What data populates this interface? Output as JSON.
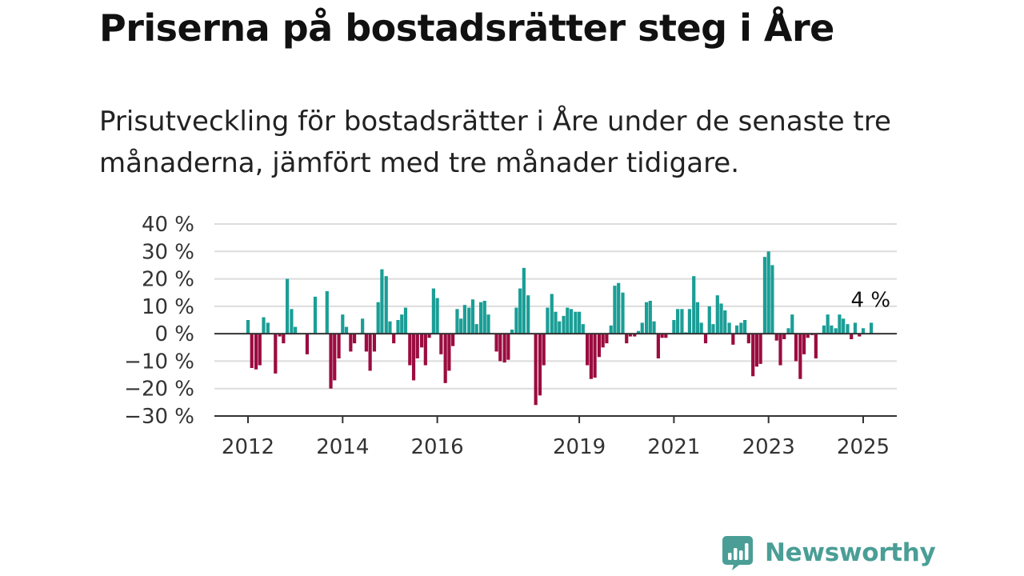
{
  "title": "Priserna på bostadsrätter steg i Åre",
  "subtitle": "Prisutveckling för bostadsrätter i Åre under de senaste tre månaderna, jämfört med tre månader tidigare.",
  "brand": {
    "name": "Newsworthy",
    "icon": "newsworthy-logo-icon"
  },
  "colors": {
    "positive": "#1a9e96",
    "negative": "#9b0c3f",
    "grid": "#dcdcdc",
    "axis": "#333333",
    "brand": "#4a9e96"
  },
  "chart_data": {
    "type": "bar",
    "title": "",
    "xlabel": "",
    "ylabel": "",
    "ylim": [
      -30,
      40
    ],
    "y_ticks": [
      {
        "value": 40,
        "label": "40 %"
      },
      {
        "value": 30,
        "label": "30 %"
      },
      {
        "value": 20,
        "label": "20 %"
      },
      {
        "value": 10,
        "label": "10 %"
      },
      {
        "value": 0,
        "label": "0 %"
      },
      {
        "value": -10,
        "label": "−10 %"
      },
      {
        "value": -20,
        "label": "−20 %"
      },
      {
        "value": -30,
        "label": "−30 %"
      }
    ],
    "x_ticks": [
      {
        "value": 2012,
        "label": "2012"
      },
      {
        "value": 2014,
        "label": "2014"
      },
      {
        "value": 2016,
        "label": "2016"
      },
      {
        "value": 2019,
        "label": "2019"
      },
      {
        "value": 2021,
        "label": "2021"
      },
      {
        "value": 2023,
        "label": "2023"
      },
      {
        "value": 2025,
        "label": "2025"
      }
    ],
    "grid": true,
    "legend": "none",
    "series": [
      {
        "values": [
          [
            2012.0,
            5
          ],
          [
            2012.08,
            -12.5
          ],
          [
            2012.17,
            -13
          ],
          [
            2012.25,
            -11.5
          ],
          [
            2012.33,
            6
          ],
          [
            2012.42,
            4
          ],
          [
            2012.58,
            -14.5
          ],
          [
            2012.67,
            -1
          ],
          [
            2012.75,
            -3.5
          ],
          [
            2012.83,
            20
          ],
          [
            2012.92,
            9
          ],
          [
            2013.0,
            2.5
          ],
          [
            2013.25,
            -7.5
          ],
          [
            2013.42,
            13.5
          ],
          [
            2013.67,
            15.5
          ],
          [
            2013.75,
            -20
          ],
          [
            2013.83,
            -17
          ],
          [
            2013.92,
            -9
          ],
          [
            2014.0,
            7
          ],
          [
            2014.08,
            2.5
          ],
          [
            2014.17,
            -6.5
          ],
          [
            2014.25,
            -3.5
          ],
          [
            2014.42,
            5.5
          ],
          [
            2014.5,
            -6.5
          ],
          [
            2014.58,
            -13.5
          ],
          [
            2014.67,
            -6.5
          ],
          [
            2014.75,
            11.5
          ],
          [
            2014.83,
            23.5
          ],
          [
            2014.92,
            21
          ],
          [
            2015.0,
            4.5
          ],
          [
            2015.08,
            -3.5
          ],
          [
            2015.17,
            5
          ],
          [
            2015.25,
            7
          ],
          [
            2015.33,
            9.5
          ],
          [
            2015.42,
            -11.5
          ],
          [
            2015.5,
            -17
          ],
          [
            2015.58,
            -9
          ],
          [
            2015.67,
            -5
          ],
          [
            2015.75,
            -11.5
          ],
          [
            2015.83,
            -1.5
          ],
          [
            2015.92,
            16.5
          ],
          [
            2016.0,
            13
          ],
          [
            2016.08,
            -7.5
          ],
          [
            2016.17,
            -18
          ],
          [
            2016.25,
            -13.5
          ],
          [
            2016.33,
            -4.5
          ],
          [
            2016.42,
            9
          ],
          [
            2016.5,
            5.5
          ],
          [
            2016.58,
            10.5
          ],
          [
            2016.67,
            9.5
          ],
          [
            2016.75,
            12.5
          ],
          [
            2016.83,
            3.5
          ],
          [
            2016.92,
            11.5
          ],
          [
            2017.0,
            12
          ],
          [
            2017.08,
            7
          ],
          [
            2017.25,
            -6.5
          ],
          [
            2017.33,
            -10
          ],
          [
            2017.42,
            -10.5
          ],
          [
            2017.5,
            -9.5
          ],
          [
            2017.58,
            1.5
          ],
          [
            2017.67,
            9.5
          ],
          [
            2017.75,
            16.5
          ],
          [
            2017.83,
            24
          ],
          [
            2017.92,
            14
          ],
          [
            2018.08,
            -26
          ],
          [
            2018.17,
            -22.5
          ],
          [
            2018.25,
            -11.5
          ],
          [
            2018.33,
            9.5
          ],
          [
            2018.42,
            14.5
          ],
          [
            2018.5,
            8
          ],
          [
            2018.58,
            4.5
          ],
          [
            2018.67,
            6.5
          ],
          [
            2018.75,
            9.5
          ],
          [
            2018.83,
            9
          ],
          [
            2018.92,
            8
          ],
          [
            2019.0,
            8
          ],
          [
            2019.08,
            3.5
          ],
          [
            2019.17,
            -11.5
          ],
          [
            2019.25,
            -16.5
          ],
          [
            2019.33,
            -16
          ],
          [
            2019.42,
            -8.5
          ],
          [
            2019.5,
            -5
          ],
          [
            2019.58,
            -3.5
          ],
          [
            2019.67,
            3
          ],
          [
            2019.75,
            17.5
          ],
          [
            2019.83,
            18.5
          ],
          [
            2019.92,
            15
          ],
          [
            2020.0,
            -3.5
          ],
          [
            2020.08,
            -1
          ],
          [
            2020.17,
            -1
          ],
          [
            2020.25,
            1
          ],
          [
            2020.33,
            4
          ],
          [
            2020.42,
            11.5
          ],
          [
            2020.5,
            12
          ],
          [
            2020.58,
            4.5
          ],
          [
            2020.67,
            -9
          ],
          [
            2020.75,
            -1.5
          ],
          [
            2020.83,
            -1.5
          ],
          [
            2021.0,
            5
          ],
          [
            2021.08,
            9
          ],
          [
            2021.17,
            9
          ],
          [
            2021.25,
            0.5
          ],
          [
            2021.33,
            9
          ],
          [
            2021.42,
            21
          ],
          [
            2021.5,
            11.5
          ],
          [
            2021.58,
            4
          ],
          [
            2021.67,
            -3.5
          ],
          [
            2021.75,
            10
          ],
          [
            2021.83,
            3.5
          ],
          [
            2021.92,
            14
          ],
          [
            2022.0,
            11
          ],
          [
            2022.08,
            8.5
          ],
          [
            2022.17,
            4
          ],
          [
            2022.25,
            -4
          ],
          [
            2022.33,
            3
          ],
          [
            2022.42,
            4
          ],
          [
            2022.5,
            5
          ],
          [
            2022.58,
            -3.5
          ],
          [
            2022.67,
            -15.5
          ],
          [
            2022.75,
            -12
          ],
          [
            2022.83,
            -11
          ],
          [
            2022.92,
            28
          ],
          [
            2023.0,
            30
          ],
          [
            2023.08,
            25
          ],
          [
            2023.17,
            -2.5
          ],
          [
            2023.25,
            -11.5
          ],
          [
            2023.33,
            -2
          ],
          [
            2023.42,
            2
          ],
          [
            2023.5,
            7
          ],
          [
            2023.58,
            -10
          ],
          [
            2023.67,
            -16.5
          ],
          [
            2023.75,
            -7.5
          ],
          [
            2023.83,
            -1.5
          ],
          [
            2023.92,
            -0.5
          ],
          [
            2024.0,
            -9
          ],
          [
            2024.17,
            3
          ],
          [
            2024.25,
            7
          ],
          [
            2024.33,
            3
          ],
          [
            2024.42,
            2
          ],
          [
            2024.5,
            7
          ],
          [
            2024.58,
            5.5
          ],
          [
            2024.67,
            3.5
          ],
          [
            2024.75,
            -2
          ],
          [
            2024.83,
            4
          ],
          [
            2024.92,
            -1
          ],
          [
            2025.0,
            2
          ],
          [
            2025.17,
            4
          ]
        ]
      }
    ],
    "annotations": [
      {
        "text": "4 %",
        "x": 2025.17,
        "y": 4
      }
    ]
  }
}
